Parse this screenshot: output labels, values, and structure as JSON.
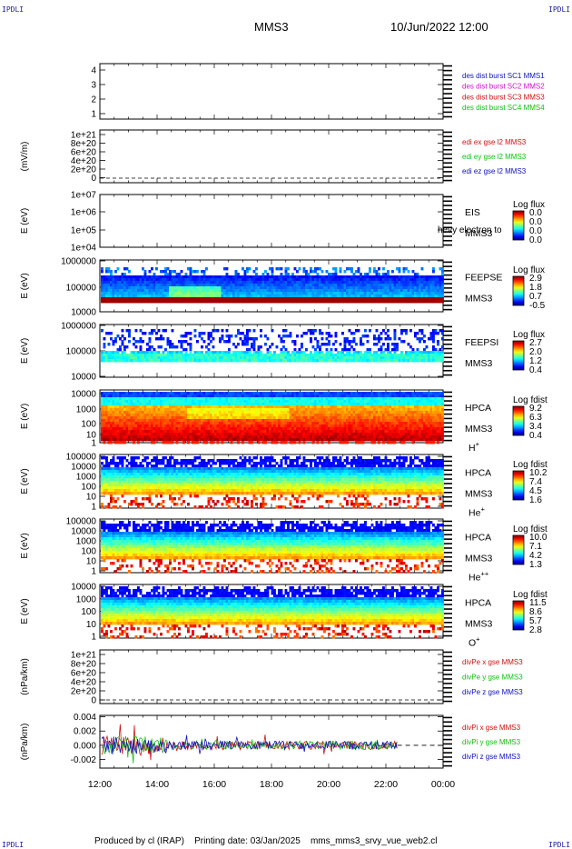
{
  "corners": {
    "top_left": "IPDLI",
    "top_right": "IPDLI",
    "bottom_left": "IPDLI",
    "bottom_right": "IPDLI"
  },
  "header": {
    "spacecraft": "MMS3",
    "date": "10/Jun/2022 12:00"
  },
  "footer": {
    "producer": "Produced by cl (IRAP)",
    "printing": "Printing date: 03/Jan/2025",
    "filename": "mms_mms3_srvy_vue_web2.cl"
  },
  "time_axis": {
    "ticks": [
      "12:00",
      "14:00",
      "16:00",
      "18:00",
      "20:00",
      "22:00",
      "00:00"
    ]
  },
  "colors": {
    "black": "#000000",
    "blue": "#1010c0",
    "magenta": "#d010d0",
    "red": "#d01010",
    "green": "#10c010",
    "dark_red": "#a00000"
  },
  "chart_data": [
    {
      "type": "line",
      "panel": "des-dist-burst",
      "ylabel": "",
      "ylim": [
        0.6,
        4.4
      ],
      "ticks": [
        "4",
        "3",
        "2",
        "1"
      ],
      "series": [
        {
          "name": "des dist burst SC1 MMS1",
          "color": "#1010c0",
          "values": []
        },
        {
          "name": "des dist burst SC2 MMS2",
          "color": "#d010d0",
          "values": []
        },
        {
          "name": "des dist burst SC3 MMS3",
          "color": "#d01010",
          "values": []
        },
        {
          "name": "des dist burst SC4 MMS4",
          "color": "#10c010",
          "values": []
        }
      ]
    },
    {
      "type": "line",
      "panel": "edi-e-gse",
      "ylabel": "(mV/m)",
      "ticks": [
        "1e+21",
        "8e+20",
        "6e+20",
        "4e+20",
        "2e+20",
        "0"
      ],
      "series": [
        {
          "name": "edi ex gse l2 MMS3",
          "color": "#d01010",
          "values": []
        },
        {
          "name": "edi ey gse l2 MMS3",
          "color": "#10c010",
          "values": []
        },
        {
          "name": "edi ez gse l2 MMS3",
          "color": "#1010c0",
          "values": []
        }
      ]
    },
    {
      "type": "heatmap",
      "panel": "eis",
      "ylabel": "E (eV)",
      "ticks": [
        "1e+07",
        "1e+06",
        "1e+05",
        "1e+04"
      ],
      "label": [
        "EIS",
        "MMS3"
      ],
      "overlay_text": "hevy electron to",
      "colorbar": {
        "title": "Log flux",
        "values": [
          "0.0",
          "0.0",
          "0.0",
          "0.0"
        ]
      }
    },
    {
      "type": "heatmap",
      "panel": "feepse",
      "ylabel": "E (eV)",
      "ticks": [
        "1000000",
        "100000",
        "10000"
      ],
      "label": [
        "FEEPSE",
        "MMS3"
      ],
      "colorbar": {
        "title": "Log flux",
        "values": [
          "2.9",
          "1.8",
          "0.7",
          "-0.5"
        ]
      }
    },
    {
      "type": "heatmap",
      "panel": "feepsi",
      "ylabel": "E (eV)",
      "ticks": [
        "1000000",
        "100000",
        "10000"
      ],
      "label": [
        "FEEPSI",
        "MMS3"
      ],
      "colorbar": {
        "title": "Log flux",
        "values": [
          "2.7",
          "2.0",
          "1.2",
          "0.4"
        ]
      }
    },
    {
      "type": "heatmap",
      "panel": "hpca-h",
      "ylabel": "E (eV)",
      "ticks": [
        "10000",
        "1000",
        "100",
        "10",
        "1"
      ],
      "label": [
        "HPCA",
        "MMS3"
      ],
      "species": "H",
      "charge": "+",
      "colorbar": {
        "title": "Log fdist",
        "values": [
          "9.2",
          "6.3",
          "3.4",
          "0.4"
        ]
      }
    },
    {
      "type": "heatmap",
      "panel": "hpca-he",
      "ylabel": "E (eV)",
      "ticks": [
        "100000",
        "10000",
        "1000",
        "100",
        "10",
        "1"
      ],
      "label": [
        "HPCA",
        "MMS3"
      ],
      "species": "He",
      "charge": "+",
      "colorbar": {
        "title": "Log fdist",
        "values": [
          "10.2",
          "7.4",
          "4.5",
          "1.6"
        ]
      }
    },
    {
      "type": "heatmap",
      "panel": "hpca-hepp",
      "ylabel": "E (eV)",
      "ticks": [
        "100000",
        "10000",
        "1000",
        "100",
        "10",
        "1"
      ],
      "label": [
        "HPCA",
        "MMS3"
      ],
      "species": "He",
      "charge": "++",
      "colorbar": {
        "title": "Log fdist",
        "values": [
          "10.0",
          "7.1",
          "4.2",
          "1.3"
        ]
      }
    },
    {
      "type": "heatmap",
      "panel": "hpca-o",
      "ylabel": "E (eV)",
      "ticks": [
        "10000",
        "1000",
        "100",
        "10",
        "1"
      ],
      "label": [
        "HPCA",
        "MMS3"
      ],
      "species": "O",
      "charge": "+",
      "colorbar": {
        "title": "Log fdist",
        "values": [
          "11.5",
          "8.6",
          "5.7",
          "2.8"
        ]
      }
    },
    {
      "type": "line",
      "panel": "divpe",
      "ylabel": "(nPa/km)",
      "ticks": [
        "1e+21",
        "8e+20",
        "6e+20",
        "4e+20",
        "2e+20",
        "0"
      ],
      "series": [
        {
          "name": "divPe x gse MMS3",
          "color": "#d01010",
          "values": []
        },
        {
          "name": "divPe y gse MMS3",
          "color": "#10c010",
          "values": []
        },
        {
          "name": "divPe z gse MMS3",
          "color": "#1010c0",
          "values": []
        }
      ]
    },
    {
      "type": "line",
      "panel": "divpi",
      "ylabel": "(nPa/km)",
      "ylim": [
        -0.0032,
        0.0042
      ],
      "ticks": [
        "0.004",
        "0.002",
        "0.000",
        "-0.002"
      ],
      "series": [
        {
          "name": "divPi x gse MMS3",
          "color": "#d01010",
          "values": []
        },
        {
          "name": "divPi y gse MMS3",
          "color": "#10c010",
          "values": []
        },
        {
          "name": "divPi z gse MMS3",
          "color": "#1010c0",
          "values": []
        }
      ]
    }
  ]
}
